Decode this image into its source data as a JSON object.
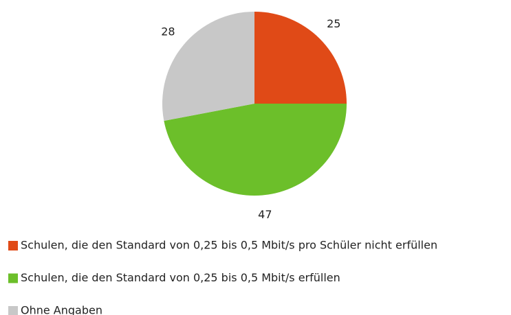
{
  "chart_data": {
    "type": "pie",
    "categories": [
      "Schulen, die den Standard von 0,25 bis 0,5 Mbit/s pro Schüler nicht erfüllen",
      "Schulen, die den Standard von 0,25 bis 0,5 Mbit/s erfüllen",
      "Ohne Angaben"
    ],
    "values": [
      25,
      47,
      28
    ],
    "colors": [
      "#e04a17",
      "#6cbf2a",
      "#c8c8c8"
    ]
  }
}
